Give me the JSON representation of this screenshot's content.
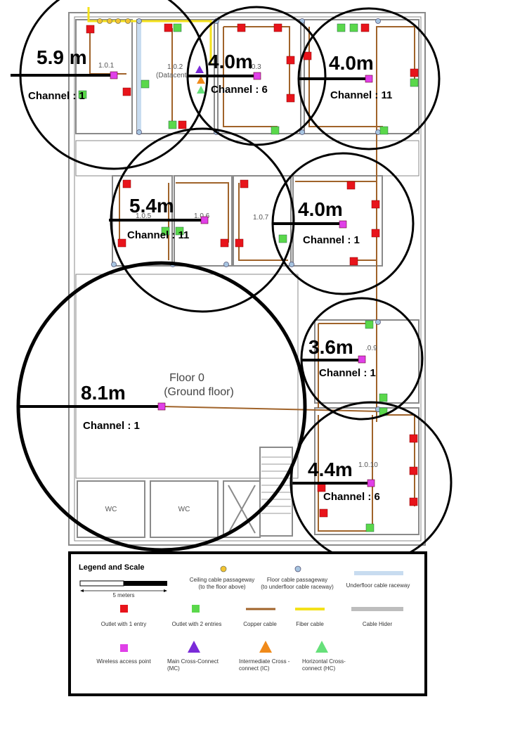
{
  "rooms": [
    {
      "label": "1.0.1"
    },
    {
      "label": "1.0.2"
    },
    {
      "label": "(Datacent"
    },
    {
      "label": ".0.3"
    },
    {
      "label": "1.0.5"
    },
    {
      "label": "1.0.6"
    },
    {
      "label": "1.0.7"
    },
    {
      "label": ".0.9"
    },
    {
      "label": "1.0.10"
    }
  ],
  "floor": {
    "name": "Floor 0",
    "subtitle": "(Ground floor)"
  },
  "wc_label": "WC",
  "access_points": [
    {
      "radius": "5.9 m",
      "channel": "Channel : 1"
    },
    {
      "radius": "4.0m",
      "channel": "Channel : 6"
    },
    {
      "radius": "4.0m",
      "channel": "Channel : 11"
    },
    {
      "radius": "5.4m",
      "channel": "Channel : 11"
    },
    {
      "radius": "4.0m",
      "channel": "Channel : 1"
    },
    {
      "radius": "3.6m",
      "channel": "Channel : 1"
    },
    {
      "radius": "8.1m",
      "channel": "Channel : 1"
    },
    {
      "radius": "4.4m",
      "channel": "Channel : 6"
    }
  ],
  "legend": {
    "title": "Legend and Scale",
    "scale_label": "5 meters",
    "items": [
      {
        "label": "Ceiling cable passageway",
        "sub": "(to the floor above)",
        "icon": "orange-circle"
      },
      {
        "label": "Floor cable passageway",
        "sub": "(to underfloor cable raceway)",
        "icon": "blue-circle"
      },
      {
        "label": "Underfloor cable raceway",
        "sub": "",
        "icon": "light-blue-line"
      },
      {
        "label": "Outlet with 1 entry",
        "sub": "",
        "icon": "red-square"
      },
      {
        "label": "Outlet with 2 entries",
        "sub": "",
        "icon": "green-square"
      },
      {
        "label": "Copper cable",
        "sub": "",
        "icon": "brown-line"
      },
      {
        "label": "Fiber cable",
        "sub": "",
        "icon": "yellow-line"
      },
      {
        "label": "Cable Hider",
        "sub": "",
        "icon": "gray-line"
      },
      {
        "label": "Wireless access point",
        "sub": "",
        "icon": "magenta-square"
      },
      {
        "label": "Main Cross-Connect",
        "sub": "(MC)",
        "icon": "purple-triangle"
      },
      {
        "label": "Intermediate Cross -",
        "sub": "connect (IC)",
        "icon": "orange-triangle"
      },
      {
        "label": "Horizontal Cross-",
        "sub": "connect (HC)",
        "icon": "green-triangle"
      }
    ]
  },
  "colors": {
    "outlet_1": "#e8141b",
    "outlet_2": "#5ad84b",
    "ap": "#e040e8",
    "copper": "#a0632a",
    "fiber": "#f4e11a",
    "raceway": "#c8dcf0",
    "wall": "#888888",
    "mc": "#7a2ad8",
    "ic": "#f08a1a",
    "hc": "#66e07a"
  }
}
